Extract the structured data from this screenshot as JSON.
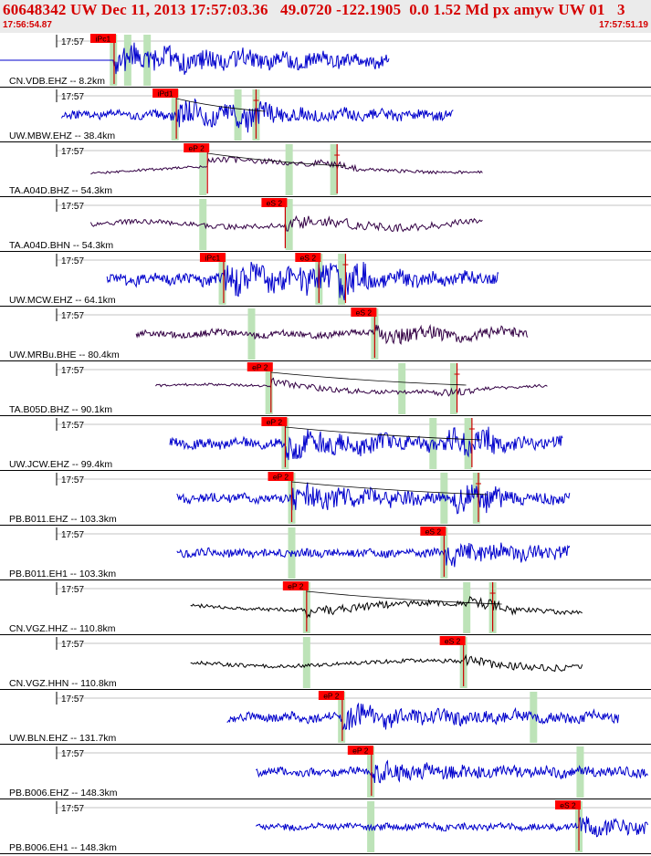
{
  "header": {
    "title": "60648342 UW Dec 11, 2013 17:57:03.36   49.0720 -122.1905  0.0 1.52 Md px amyw UW 01   3",
    "start_time": "17:56:54.87",
    "end_time": "17:57:51.19"
  },
  "colors": {
    "background": "#ffffff",
    "header_bg": "#ebebeb",
    "header_text": "#d50000",
    "pick_fill": "#ff0000",
    "pick_line": "#cc0000",
    "window_band": "#bde3b8",
    "trace_blue": "#0000cc",
    "trace_purple": "#330044",
    "trace_black": "#000000",
    "time_axis_line": "#888888"
  },
  "chart_data": {
    "type": "line",
    "title": "60648342 UW Dec 11, 2013 17:57:03.36   49.0720 -122.1905  0.0 1.52 Md px amyw UW 01   3",
    "x_axis": {
      "start": "17:56:54.87",
      "end": "17:57:51.19",
      "tick_label": "17:57"
    },
    "traces": [
      {
        "label": "CN.VDB.EHZ -- 8.2km",
        "color": "blue",
        "data_start": 0.0,
        "data_end": 0.6,
        "flat_until": 0.176,
        "picks": [
          {
            "label": "iPc1",
            "t": 0.176
          }
        ],
        "bands": [
          0.175,
          0.197,
          0.227
        ],
        "amp": 0.45,
        "freq": 130,
        "hp": 0.66
      },
      {
        "label": "UW.MBW.EHZ -- 38.4km",
        "color": "blue",
        "data_start": 0.095,
        "data_end": 0.7,
        "picks": [
          {
            "label": "iPd1",
            "t": 0.272
          },
          {
            "label": "",
            "t": 0.395
          }
        ],
        "bands": [
          0.27,
          0.367,
          0.395
        ],
        "amp": 0.35,
        "freq": 130,
        "hp": 0.66
      },
      {
        "label": "TA.A04D.BHZ -- 54.3km",
        "color": "purple",
        "data_start": 0.14,
        "data_end": 0.745,
        "picks": [
          {
            "label": "eP 2",
            "t": 0.32
          },
          {
            "label": "",
            "t": 0.52
          }
        ],
        "bands": [
          0.313,
          0.446,
          0.515
        ],
        "amp": 0.35,
        "freq": 12,
        "hp": 0.2
      },
      {
        "label": "TA.A04D.BHN -- 54.3km",
        "color": "purple",
        "data_start": 0.14,
        "data_end": 0.745,
        "picks": [
          {
            "label": "eS 2",
            "t": 0.44
          }
        ],
        "bands": [
          0.313,
          0.446
        ],
        "amp": 0.3,
        "freq": 28,
        "hp": 0.45
      },
      {
        "label": "UW.MCW.EHZ -- 64.1km",
        "color": "blue",
        "data_start": 0.165,
        "data_end": 0.77,
        "picks": [
          {
            "label": "iPc1",
            "t": 0.345
          },
          {
            "label": "eS 2",
            "t": 0.492
          },
          {
            "label": "",
            "t": 0.533
          }
        ],
        "bands": [
          0.343,
          0.492,
          0.527
        ],
        "amp": 0.45,
        "freq": 140,
        "hp": 0.66
      },
      {
        "label": "UW.MRBu.BHE -- 80.4km",
        "color": "purple",
        "data_start": 0.21,
        "data_end": 0.815,
        "picks": [
          {
            "label": "eS 2",
            "t": 0.578
          }
        ],
        "bands": [
          0.388,
          0.578
        ],
        "amp": 0.3,
        "freq": 70,
        "hp": 0.6
      },
      {
        "label": "TA.B05D.BHZ -- 90.1km",
        "color": "purple",
        "data_start": 0.24,
        "data_end": 0.845,
        "picks": [
          {
            "label": "eP 2",
            "t": 0.418
          },
          {
            "label": "",
            "t": 0.705
          }
        ],
        "bands": [
          0.415,
          0.62,
          0.7
        ],
        "amp": 0.35,
        "freq": 12,
        "hp": 0.2
      },
      {
        "label": "UW.JCW.EHZ -- 99.4km",
        "color": "blue",
        "data_start": 0.262,
        "data_end": 0.868,
        "picks": [
          {
            "label": "eP 2",
            "t": 0.44
          },
          {
            "label": "",
            "t": 0.728
          }
        ],
        "bands": [
          0.44,
          0.668,
          0.722
        ],
        "amp": 0.4,
        "freq": 140,
        "hp": 0.66
      },
      {
        "label": "PB.B011.EHZ -- 103.3km",
        "color": "blue",
        "data_start": 0.273,
        "data_end": 0.88,
        "picks": [
          {
            "label": "eP 2",
            "t": 0.45
          },
          {
            "label": "",
            "t": 0.738
          }
        ],
        "bands": [
          0.45,
          0.685,
          0.735
        ],
        "amp": 0.35,
        "freq": 150,
        "hp": 0.7
      },
      {
        "label": "PB.B011.EH1 -- 103.3km",
        "color": "blue",
        "data_start": 0.273,
        "data_end": 0.88,
        "picks": [
          {
            "label": "eS 2",
            "t": 0.685
          }
        ],
        "bands": [
          0.45,
          0.685
        ],
        "amp": 0.3,
        "freq": 150,
        "hp": 0.7
      },
      {
        "label": "CN.VGZ.HHZ -- 110.8km",
        "color": "black",
        "data_start": 0.294,
        "data_end": 0.9,
        "picks": [
          {
            "label": "eP 2",
            "t": 0.473
          },
          {
            "label": "",
            "t": 0.76
          }
        ],
        "bands": [
          0.473,
          0.72,
          0.76
        ],
        "amp": 0.35,
        "freq": 16,
        "hp": 0.3
      },
      {
        "label": "CN.VGZ.HHN -- 110.8km",
        "color": "black",
        "data_start": 0.294,
        "data_end": 0.9,
        "picks": [
          {
            "label": "eS 2",
            "t": 0.715
          }
        ],
        "bands": [
          0.473,
          0.715
        ],
        "amp": 0.35,
        "freq": 16,
        "hp": 0.3
      },
      {
        "label": "UW.BLN.EHZ -- 131.7km",
        "color": "blue",
        "data_start": 0.35,
        "data_end": 0.955,
        "picks": [
          {
            "label": "eP 2",
            "t": 0.528
          }
        ],
        "bands": [
          0.527,
          0.823
        ],
        "amp": 0.35,
        "freq": 130,
        "hp": 0.66
      },
      {
        "label": "PB.B006.EHZ -- 148.3km",
        "color": "blue",
        "data_start": 0.395,
        "data_end": 1.0,
        "picks": [
          {
            "label": "eP 2",
            "t": 0.573
          }
        ],
        "bands": [
          0.572,
          0.895
        ],
        "amp": 0.3,
        "freq": 130,
        "hp": 0.7
      },
      {
        "label": "PB.B006.EH1 -- 148.3km",
        "color": "blue",
        "data_start": 0.395,
        "data_end": 1.0,
        "picks": [
          {
            "label": "eS 2",
            "t": 0.893
          }
        ],
        "bands": [
          0.572,
          0.893
        ],
        "amp": 0.25,
        "freq": 130,
        "hp": 0.7
      }
    ]
  }
}
